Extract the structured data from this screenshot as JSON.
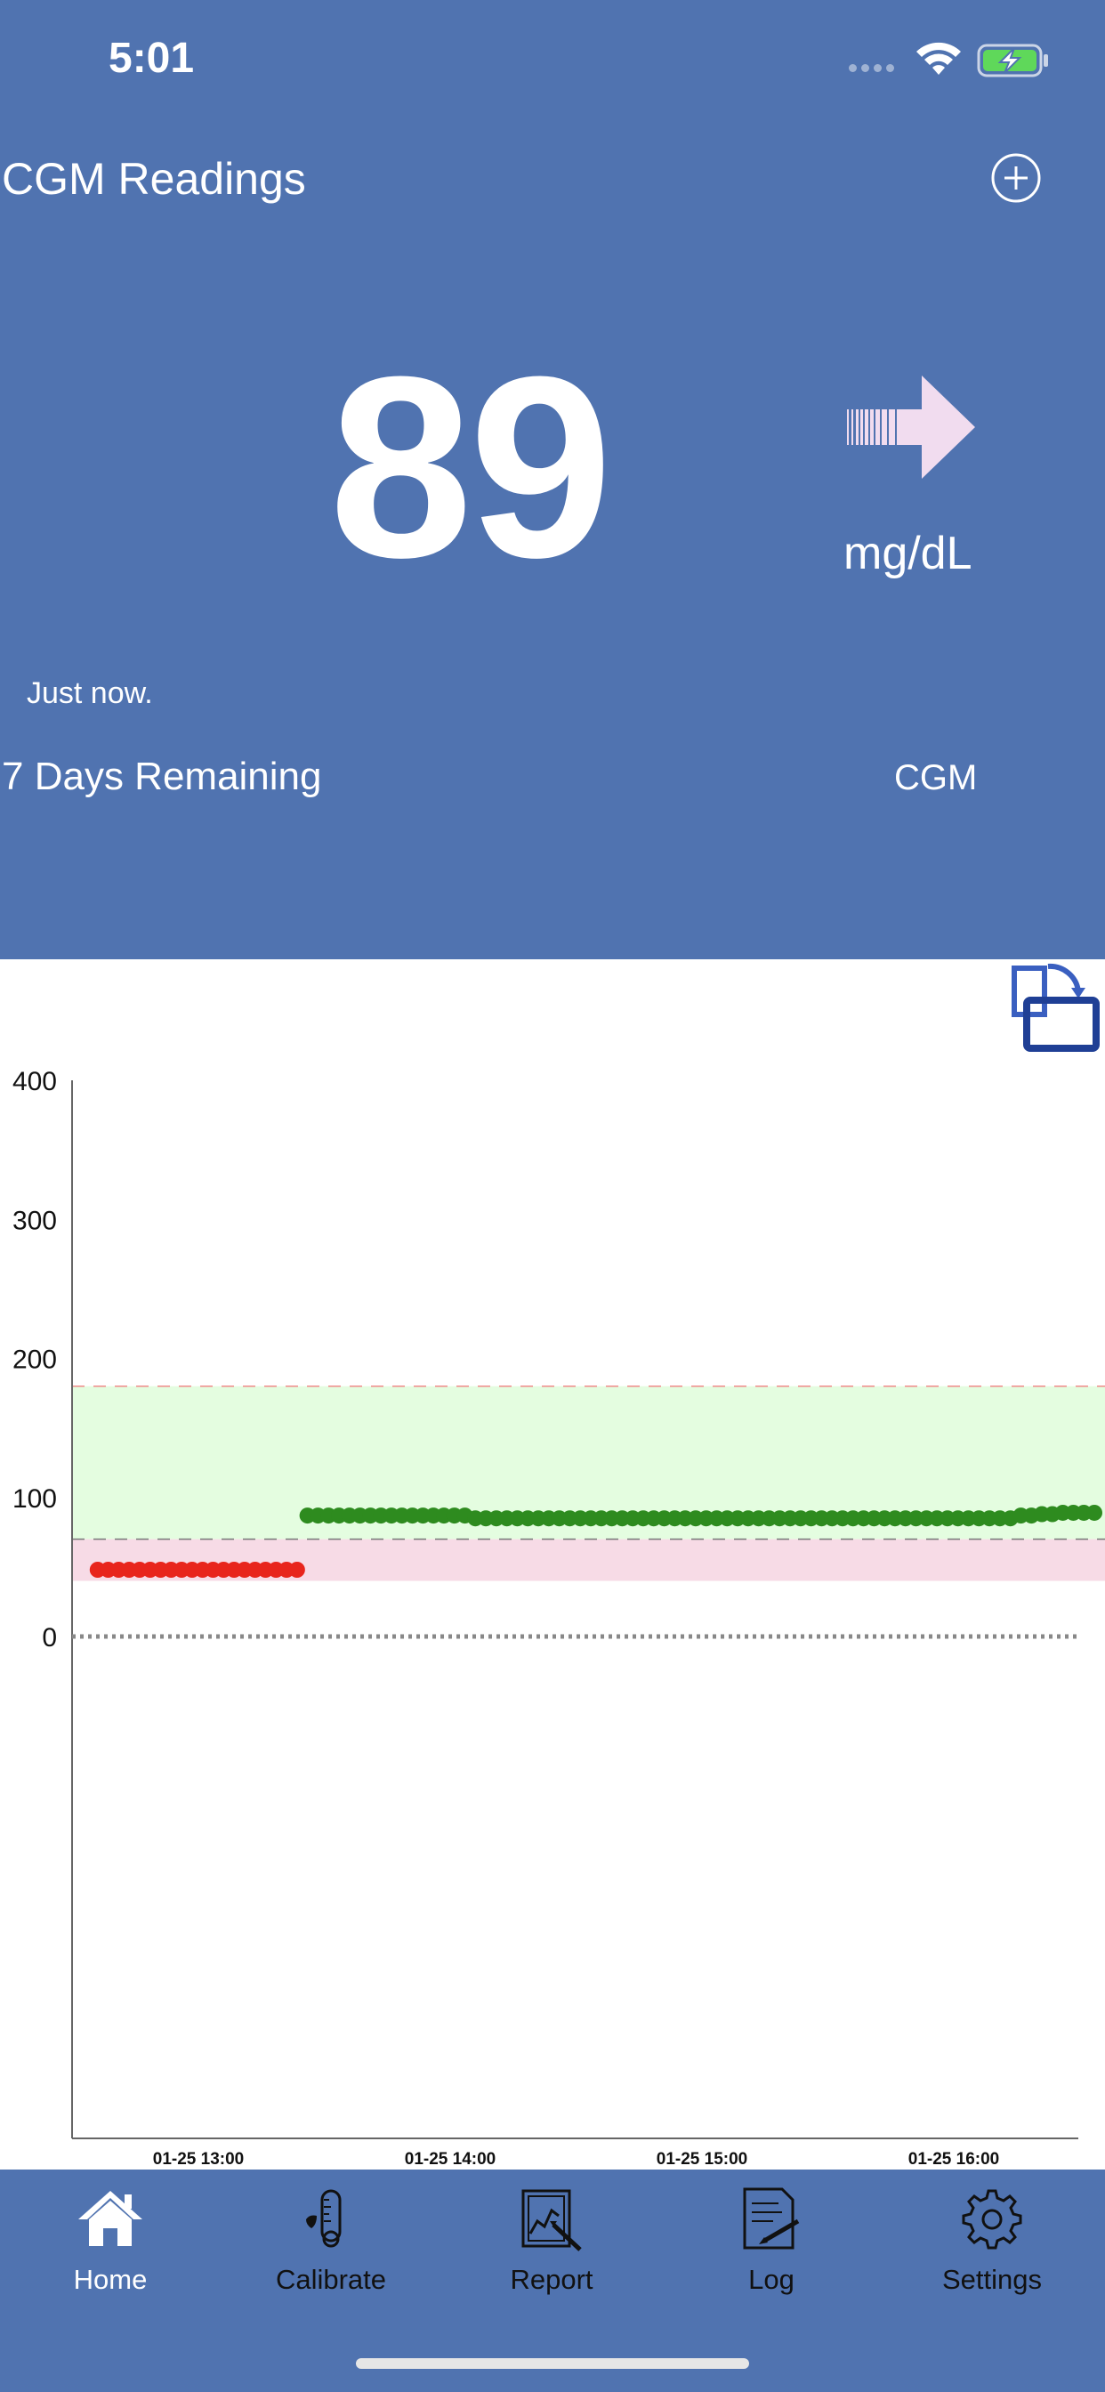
{
  "status_bar": {
    "time": "5:01"
  },
  "header": {
    "title": "CGM Readings",
    "add_icon": "plus-circle-icon"
  },
  "reading": {
    "value": "89",
    "unit": "mg/dL",
    "trend": "steady-right-arrow",
    "updated": "Just now.",
    "days_remaining": "7  Days Remaining",
    "source": "CGM"
  },
  "colors": {
    "header_bg": "#5073b0",
    "in_range_band": "#e4fde0",
    "low_band": "#f7dbe6",
    "in_range_point": "#2e8b1f",
    "low_point": "#e8251c",
    "threshold_line": "#f08a8a"
  },
  "chart_data": {
    "type": "scatter",
    "ylim": [
      0,
      400
    ],
    "y_ticks": [
      400,
      300,
      200,
      100,
      0
    ],
    "y_tick_labels": [
      "400",
      "300",
      "200",
      "100",
      "0"
    ],
    "x_tick_labels": [
      "01-25 13:00",
      "01-25 14:00",
      "01-25 15:00",
      "01-25 16:00"
    ],
    "target_range": [
      70,
      180
    ],
    "low_band": [
      40,
      70
    ],
    "series": [
      {
        "color": "#e8251c",
        "points": [
          [
            "12:36",
            48
          ],
          [
            "12:41",
            48
          ],
          [
            "12:46",
            48
          ],
          [
            "12:51",
            48
          ],
          [
            "12:56",
            48
          ],
          [
            "13:01",
            48
          ],
          [
            "13:06",
            48
          ],
          [
            "13:11",
            48
          ],
          [
            "13:16",
            48
          ],
          [
            "13:21",
            48
          ]
        ]
      },
      {
        "color": "#2e8b1f",
        "points": [
          [
            "13:26",
            87
          ],
          [
            "13:31",
            87
          ],
          [
            "13:36",
            87
          ],
          [
            "13:41",
            87
          ],
          [
            "13:46",
            87
          ],
          [
            "13:51",
            87
          ],
          [
            "13:56",
            87
          ],
          [
            "14:01",
            87
          ],
          [
            "14:06",
            85
          ],
          [
            "14:11",
            85
          ],
          [
            "14:16",
            85
          ],
          [
            "14:21",
            85
          ],
          [
            "14:26",
            85
          ],
          [
            "14:31",
            85
          ],
          [
            "14:36",
            85
          ],
          [
            "14:41",
            85
          ],
          [
            "14:46",
            85
          ],
          [
            "14:51",
            85
          ],
          [
            "14:56",
            85
          ],
          [
            "15:01",
            85
          ],
          [
            "15:06",
            85
          ],
          [
            "15:11",
            85
          ],
          [
            "15:16",
            85
          ],
          [
            "15:21",
            85
          ],
          [
            "15:26",
            85
          ],
          [
            "15:31",
            85
          ],
          [
            "15:36",
            85
          ],
          [
            "15:41",
            85
          ],
          [
            "15:46",
            85
          ],
          [
            "15:51",
            85
          ],
          [
            "15:56",
            85
          ],
          [
            "16:01",
            85
          ],
          [
            "16:06",
            85
          ],
          [
            "16:11",
            85
          ],
          [
            "16:16",
            87
          ],
          [
            "16:21",
            88
          ],
          [
            "16:26",
            89
          ],
          [
            "16:31",
            89
          ]
        ]
      }
    ]
  },
  "tabs": [
    {
      "label": "Home",
      "icon": "home-icon",
      "active": true
    },
    {
      "label": "Calibrate",
      "icon": "thermometer-drop-icon",
      "active": false
    },
    {
      "label": "Report",
      "icon": "report-chart-icon",
      "active": false
    },
    {
      "label": "Log",
      "icon": "log-document-icon",
      "active": false
    },
    {
      "label": "Settings",
      "icon": "gear-icon",
      "active": false
    }
  ]
}
